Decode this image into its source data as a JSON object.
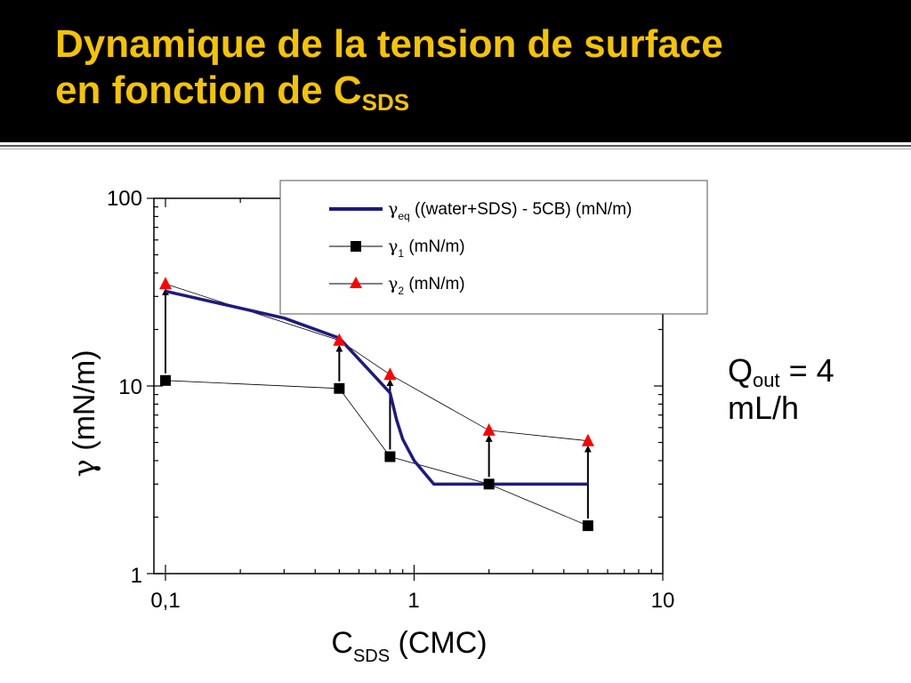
{
  "slide": {
    "title_line1": "Dynamique de la tension de surface",
    "title_line2_main": "en fonction de C",
    "title_line2_sub": "SDS",
    "note_main": "Q",
    "note_sub": "out",
    "note_rest": " = 4",
    "note_line2": "mL/h"
  },
  "colors": {
    "title": "#f5c400",
    "eq_line": "#1f1a80",
    "gamma1": "#000000",
    "gamma2": "#ff0000"
  },
  "chart_data": {
    "type": "line",
    "xscale": "log",
    "yscale": "log",
    "xlim": [
      0.1,
      10
    ],
    "ylim": [
      1,
      100
    ],
    "x_ticklabels": [
      "0,1",
      "1",
      "10"
    ],
    "y_ticklabels": [
      "1",
      "10",
      "100"
    ],
    "xlabel_main": "C",
    "xlabel_sub": "SDS",
    "xlabel_rest": " (CMC)",
    "ylabel_symbol": "γ",
    "ylabel_rest": " (mN/m)",
    "legend_position": "top-right",
    "series": [
      {
        "key": "eq",
        "name_symbol": "γ",
        "name_sub": "eq",
        "name_rest": " ((water+SDS) - 5CB) (mN/m)",
        "style": "thick-line",
        "x": [
          0.1,
          0.3,
          0.5,
          0.8,
          0.85,
          0.9,
          1.0,
          1.2,
          5
        ],
        "y": [
          32,
          23,
          18,
          9.2,
          6.6,
          5.2,
          4.0,
          3.0,
          3.0
        ]
      },
      {
        "key": "g1",
        "name_symbol": "γ",
        "name_sub": "1",
        "name_rest": " (mN/m)",
        "style": "square",
        "x": [
          0.1,
          0.5,
          0.8,
          2,
          5
        ],
        "y": [
          10.7,
          9.7,
          4.2,
          3.0,
          1.8
        ]
      },
      {
        "key": "g2",
        "name_symbol": "γ",
        "name_sub": "2",
        "name_rest": " (mN/m)",
        "style": "triangle",
        "x": [
          0.1,
          0.5,
          0.8,
          2,
          5
        ],
        "y": [
          35,
          17.5,
          11.5,
          5.8,
          5.1
        ]
      }
    ],
    "arrows": [
      {
        "x": 0.1,
        "from": 10.7,
        "to": 35
      },
      {
        "x": 0.5,
        "from": 9.7,
        "to": 17.5
      },
      {
        "x": 0.8,
        "from": 4.2,
        "to": 11.5
      },
      {
        "x": 2,
        "from": 3.0,
        "to": 5.8
      },
      {
        "x": 5,
        "from": 1.8,
        "to": 5.1
      }
    ]
  }
}
